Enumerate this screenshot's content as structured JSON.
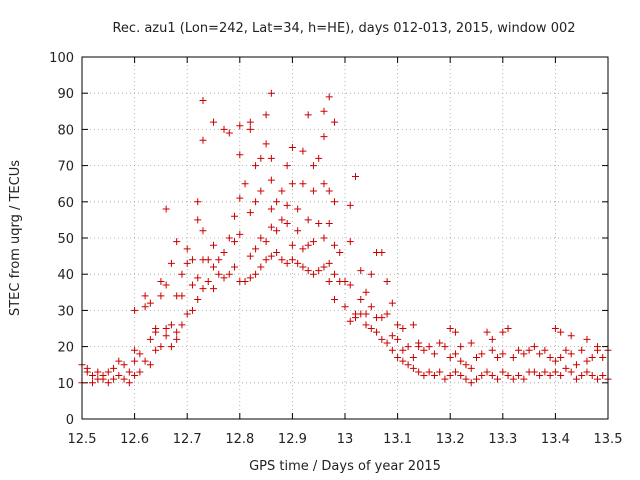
{
  "chart_data": {
    "type": "scatter",
    "title": "Rec. azu1 (Lon=242, Lat=34, h=HE), days 012-013, 2015, window 002",
    "xlabel": "GPS time / Days of year 2015",
    "ylabel": "STEC from uqrg / TECUs",
    "xlim": [
      12.5,
      13.5
    ],
    "ylim": [
      0,
      100
    ],
    "x_ticks": [
      "12.5",
      "12.6",
      "12.7",
      "12.8",
      "12.9",
      "13",
      "13.1",
      "13.2",
      "13.3",
      "13.4",
      "13.5"
    ],
    "y_ticks": [
      "0",
      "10",
      "20",
      "30",
      "40",
      "50",
      "60",
      "70",
      "80",
      "90",
      "100"
    ],
    "grid": true,
    "marker": "+",
    "color": "#cc0000",
    "points": [
      [
        12.5,
        15
      ],
      [
        12.5,
        10
      ],
      [
        12.51,
        14
      ],
      [
        12.51,
        13
      ],
      [
        12.52,
        12
      ],
      [
        12.52,
        10
      ],
      [
        12.53,
        13
      ],
      [
        12.53,
        11
      ],
      [
        12.54,
        12
      ],
      [
        12.54,
        11
      ],
      [
        12.55,
        13
      ],
      [
        12.55,
        10
      ],
      [
        12.56,
        14
      ],
      [
        12.56,
        11
      ],
      [
        12.57,
        16
      ],
      [
        12.57,
        12
      ],
      [
        12.58,
        11
      ],
      [
        12.58,
        15
      ],
      [
        12.59,
        13
      ],
      [
        12.59,
        10
      ],
      [
        12.6,
        16
      ],
      [
        12.6,
        12
      ],
      [
        12.6,
        19
      ],
      [
        12.6,
        30
      ],
      [
        12.61,
        18
      ],
      [
        12.61,
        13
      ],
      [
        12.62,
        31
      ],
      [
        12.62,
        16
      ],
      [
        12.62,
        34
      ],
      [
        12.63,
        15
      ],
      [
        12.63,
        22
      ],
      [
        12.63,
        32
      ],
      [
        12.64,
        19
      ],
      [
        12.64,
        25
      ],
      [
        12.64,
        24
      ],
      [
        12.65,
        20
      ],
      [
        12.65,
        38
      ],
      [
        12.65,
        34
      ],
      [
        12.66,
        23
      ],
      [
        12.66,
        25
      ],
      [
        12.66,
        58
      ],
      [
        12.66,
        37
      ],
      [
        12.67,
        20
      ],
      [
        12.67,
        26
      ],
      [
        12.67,
        43
      ],
      [
        12.68,
        22
      ],
      [
        12.68,
        24
      ],
      [
        12.68,
        34
      ],
      [
        12.68,
        49
      ],
      [
        12.69,
        26
      ],
      [
        12.69,
        34
      ],
      [
        12.69,
        40
      ],
      [
        12.7,
        29
      ],
      [
        12.7,
        43
      ],
      [
        12.7,
        47
      ],
      [
        12.71,
        30
      ],
      [
        12.71,
        37
      ],
      [
        12.71,
        44
      ],
      [
        12.72,
        33
      ],
      [
        12.72,
        39
      ],
      [
        12.72,
        55
      ],
      [
        12.72,
        60
      ],
      [
        12.73,
        36
      ],
      [
        12.73,
        44
      ],
      [
        12.73,
        52
      ],
      [
        12.73,
        77
      ],
      [
        12.73,
        88
      ],
      [
        12.74,
        38
      ],
      [
        12.74,
        44
      ],
      [
        12.75,
        36
      ],
      [
        12.75,
        42
      ],
      [
        12.75,
        48
      ],
      [
        12.75,
        82
      ],
      [
        12.76,
        40
      ],
      [
        12.76,
        44
      ],
      [
        12.77,
        39
      ],
      [
        12.77,
        46
      ],
      [
        12.77,
        80
      ],
      [
        12.78,
        40
      ],
      [
        12.78,
        50
      ],
      [
        12.78,
        79
      ],
      [
        12.79,
        42
      ],
      [
        12.79,
        49
      ],
      [
        12.79,
        56
      ],
      [
        12.8,
        38
      ],
      [
        12.8,
        51
      ],
      [
        12.8,
        61
      ],
      [
        12.8,
        73
      ],
      [
        12.8,
        81
      ],
      [
        12.81,
        38
      ],
      [
        12.81,
        65
      ],
      [
        12.82,
        39
      ],
      [
        12.82,
        45
      ],
      [
        12.82,
        57
      ],
      [
        12.82,
        80
      ],
      [
        12.82,
        82
      ],
      [
        12.83,
        40
      ],
      [
        12.83,
        47
      ],
      [
        12.83,
        60
      ],
      [
        12.83,
        70
      ],
      [
        12.84,
        42
      ],
      [
        12.84,
        50
      ],
      [
        12.84,
        63
      ],
      [
        12.84,
        72
      ],
      [
        12.85,
        44
      ],
      [
        12.85,
        49
      ],
      [
        12.85,
        76
      ],
      [
        12.85,
        84
      ],
      [
        12.86,
        45
      ],
      [
        12.86,
        53
      ],
      [
        12.86,
        58
      ],
      [
        12.86,
        66
      ],
      [
        12.86,
        72
      ],
      [
        12.86,
        90
      ],
      [
        12.87,
        46
      ],
      [
        12.87,
        52
      ],
      [
        12.87,
        60
      ],
      [
        12.88,
        44
      ],
      [
        12.88,
        55
      ],
      [
        12.88,
        63
      ],
      [
        12.89,
        43
      ],
      [
        12.89,
        54
      ],
      [
        12.89,
        59
      ],
      [
        12.89,
        70
      ],
      [
        12.9,
        44
      ],
      [
        12.9,
        48
      ],
      [
        12.9,
        65
      ],
      [
        12.9,
        75
      ],
      [
        12.91,
        43
      ],
      [
        12.91,
        52
      ],
      [
        12.91,
        58
      ],
      [
        12.92,
        42
      ],
      [
        12.92,
        47
      ],
      [
        12.92,
        65
      ],
      [
        12.92,
        74
      ],
      [
        12.93,
        41
      ],
      [
        12.93,
        48
      ],
      [
        12.93,
        55
      ],
      [
        12.93,
        84
      ],
      [
        12.94,
        40
      ],
      [
        12.94,
        49
      ],
      [
        12.94,
        63
      ],
      [
        12.94,
        70
      ],
      [
        12.95,
        41
      ],
      [
        12.95,
        54
      ],
      [
        12.95,
        72
      ],
      [
        12.96,
        42
      ],
      [
        12.96,
        50
      ],
      [
        12.96,
        65
      ],
      [
        12.96,
        78
      ],
      [
        12.96,
        85
      ],
      [
        12.97,
        38
      ],
      [
        12.97,
        43
      ],
      [
        12.97,
        54
      ],
      [
        12.97,
        63
      ],
      [
        12.97,
        89
      ],
      [
        12.98,
        33
      ],
      [
        12.98,
        40
      ],
      [
        12.98,
        48
      ],
      [
        12.98,
        60
      ],
      [
        12.98,
        82
      ],
      [
        12.99,
        46
      ],
      [
        12.99,
        38
      ],
      [
        13.0,
        31
      ],
      [
        13.0,
        38
      ],
      [
        13.01,
        27
      ],
      [
        13.01,
        37
      ],
      [
        13.01,
        49
      ],
      [
        13.01,
        59
      ],
      [
        13.02,
        28
      ],
      [
        13.02,
        67
      ],
      [
        13.02,
        29
      ],
      [
        13.03,
        29
      ],
      [
        13.03,
        33
      ],
      [
        13.03,
        41
      ],
      [
        13.04,
        26
      ],
      [
        13.04,
        29
      ],
      [
        13.04,
        35
      ],
      [
        13.05,
        25
      ],
      [
        13.05,
        31
      ],
      [
        13.05,
        40
      ],
      [
        13.06,
        24
      ],
      [
        13.06,
        28
      ],
      [
        13.06,
        46
      ],
      [
        13.07,
        22
      ],
      [
        13.07,
        28
      ],
      [
        13.07,
        46
      ],
      [
        13.08,
        21
      ],
      [
        13.08,
        29
      ],
      [
        13.08,
        38
      ],
      [
        13.09,
        19
      ],
      [
        13.09,
        23
      ],
      [
        13.09,
        32
      ],
      [
        13.1,
        17
      ],
      [
        13.1,
        22
      ],
      [
        13.1,
        26
      ],
      [
        13.11,
        16
      ],
      [
        13.11,
        19
      ],
      [
        13.11,
        25
      ],
      [
        13.12,
        15
      ],
      [
        13.12,
        20
      ],
      [
        13.13,
        14
      ],
      [
        13.13,
        17
      ],
      [
        13.13,
        26
      ],
      [
        13.14,
        13
      ],
      [
        13.14,
        20
      ],
      [
        13.14,
        21
      ],
      [
        13.15,
        12
      ],
      [
        13.15,
        19
      ],
      [
        13.16,
        13
      ],
      [
        13.16,
        20
      ],
      [
        13.17,
        12
      ],
      [
        13.17,
        18
      ],
      [
        13.18,
        13
      ],
      [
        13.18,
        21
      ],
      [
        13.19,
        11
      ],
      [
        13.19,
        20
      ],
      [
        13.2,
        12
      ],
      [
        13.2,
        17
      ],
      [
        13.2,
        25
      ],
      [
        13.21,
        13
      ],
      [
        13.21,
        18
      ],
      [
        13.21,
        24
      ],
      [
        13.22,
        12
      ],
      [
        13.22,
        16
      ],
      [
        13.22,
        20
      ],
      [
        13.23,
        11
      ],
      [
        13.23,
        15
      ],
      [
        13.24,
        10
      ],
      [
        13.24,
        14
      ],
      [
        13.24,
        21
      ],
      [
        13.25,
        11
      ],
      [
        13.25,
        17
      ],
      [
        13.26,
        12
      ],
      [
        13.26,
        18
      ],
      [
        13.27,
        13
      ],
      [
        13.27,
        24
      ],
      [
        13.28,
        12
      ],
      [
        13.28,
        19
      ],
      [
        13.28,
        22
      ],
      [
        13.29,
        11
      ],
      [
        13.29,
        17
      ],
      [
        13.3,
        13
      ],
      [
        13.3,
        18
      ],
      [
        13.3,
        24
      ],
      [
        13.31,
        12
      ],
      [
        13.31,
        25
      ],
      [
        13.32,
        11
      ],
      [
        13.32,
        17
      ],
      [
        13.33,
        12
      ],
      [
        13.33,
        19
      ],
      [
        13.34,
        11
      ],
      [
        13.34,
        18
      ],
      [
        13.35,
        13
      ],
      [
        13.35,
        19
      ],
      [
        13.36,
        13
      ],
      [
        13.36,
        20
      ],
      [
        13.37,
        12
      ],
      [
        13.37,
        18
      ],
      [
        13.38,
        13
      ],
      [
        13.38,
        19
      ],
      [
        13.39,
        12
      ],
      [
        13.39,
        17
      ],
      [
        13.4,
        13
      ],
      [
        13.4,
        16
      ],
      [
        13.4,
        25
      ],
      [
        13.41,
        12
      ],
      [
        13.41,
        17
      ],
      [
        13.41,
        24
      ],
      [
        13.42,
        14
      ],
      [
        13.42,
        19
      ],
      [
        13.43,
        13
      ],
      [
        13.43,
        18
      ],
      [
        13.43,
        23
      ],
      [
        13.44,
        11
      ],
      [
        13.44,
        15
      ],
      [
        13.45,
        12
      ],
      [
        13.45,
        19
      ],
      [
        13.46,
        13
      ],
      [
        13.46,
        16
      ],
      [
        13.46,
        22
      ],
      [
        13.47,
        12
      ],
      [
        13.47,
        17
      ],
      [
        13.48,
        11
      ],
      [
        13.48,
        19
      ],
      [
        13.48,
        20
      ],
      [
        13.49,
        12
      ],
      [
        13.49,
        17
      ],
      [
        13.5,
        11
      ],
      [
        13.5,
        19
      ]
    ]
  }
}
